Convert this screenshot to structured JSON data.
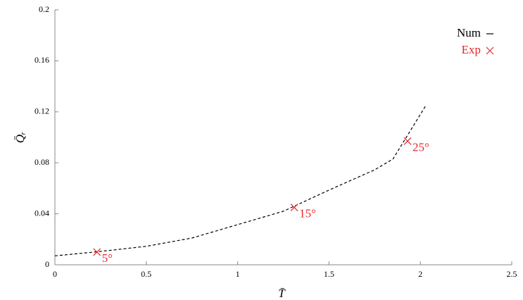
{
  "chart_data": {
    "type": "line",
    "x_label": "T̄",
    "y_label": "Q̄ᵣ",
    "xlim": [
      0,
      2.5
    ],
    "xticks": [
      0,
      0.5,
      1,
      1.5,
      2,
      2.5
    ],
    "ylim": [
      0,
      0.2
    ],
    "yticks": [
      0,
      0.04,
      0.08,
      0.12,
      0.16,
      0.2
    ],
    "legend": "upper right",
    "series": [
      {
        "name": "Num",
        "type": "line",
        "dashed": true,
        "color": "#000000",
        "x": [
          0,
          0.25,
          0.5,
          0.75,
          1,
          1.25,
          1.5,
          1.75,
          1.85,
          2.03
        ],
        "values": [
          0.007,
          0.0105,
          0.0145,
          0.021,
          0.0315,
          0.042,
          0.0586,
          0.0745,
          0.083,
          0.125
        ]
      },
      {
        "name": "Exp",
        "type": "scatter",
        "color": "#e8262a",
        "x": [
          0.23,
          1.31,
          1.93
        ],
        "values": [
          0.01,
          0.045,
          0.097
        ],
        "labels": [
          "5°",
          "15°",
          "25°"
        ]
      }
    ]
  }
}
